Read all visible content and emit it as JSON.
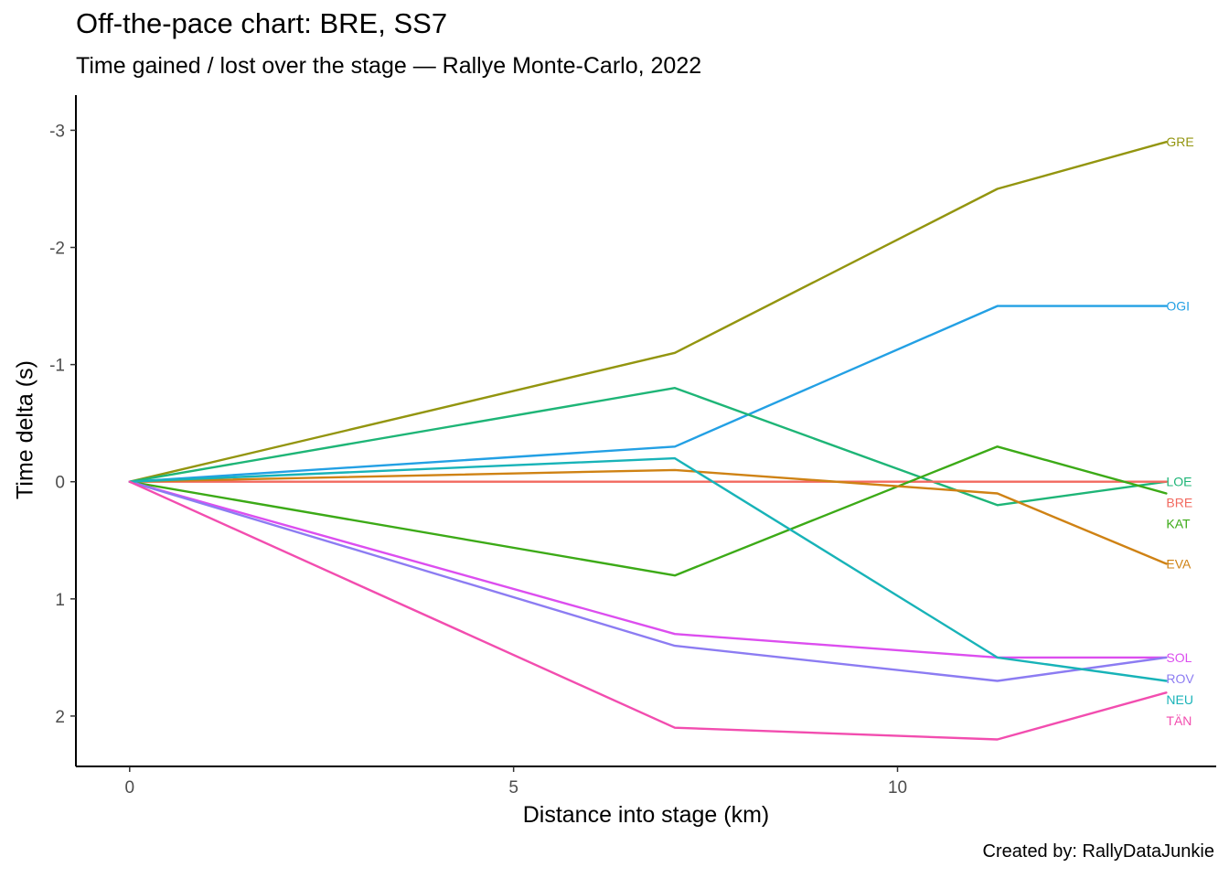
{
  "chart_data": {
    "type": "line",
    "title": "Off-the-pace chart: BRE, SS7",
    "subtitle": "Time gained / lost over the stage — Rallye Monte-Carlo, 2022",
    "xlabel": "Distance into stage (km)",
    "ylabel": "Time delta (s)",
    "caption": "Created by: RallyDataJunkie",
    "xlim": [
      -0.7,
      14.15
    ],
    "ylim": [
      -3.3,
      2.43
    ],
    "y_reversed": true,
    "x_ticks": [
      0,
      5,
      10
    ],
    "y_ticks": [
      -3,
      -2,
      -1,
      0,
      1,
      2
    ],
    "grid": false,
    "legend": "none (series labelled at line ends)",
    "x": [
      0,
      7.1,
      11.3,
      13.5
    ],
    "series": [
      {
        "name": "GRE",
        "color": "#93950F",
        "values": [
          0,
          -1.1,
          -2.5,
          -2.9
        ]
      },
      {
        "name": "OGI",
        "color": "#23A0E4",
        "values": [
          0,
          -0.3,
          -1.5,
          -1.5
        ]
      },
      {
        "name": "LOE",
        "color": "#1EB577",
        "values": [
          0,
          -0.8,
          0.2,
          0
        ]
      },
      {
        "name": "BRE",
        "color": "#F2695F",
        "values": [
          0,
          0,
          0,
          0
        ]
      },
      {
        "name": "KAT",
        "color": "#3CAA17",
        "values": [
          0,
          0.8,
          -0.3,
          0.1
        ]
      },
      {
        "name": "EVA",
        "color": "#CF8214",
        "values": [
          0,
          -0.1,
          0.1,
          0.7
        ]
      },
      {
        "name": "SOL",
        "color": "#DC4EEF",
        "values": [
          0,
          1.3,
          1.5,
          1.5
        ]
      },
      {
        "name": "ROV",
        "color": "#8C7CF2",
        "values": [
          0,
          1.4,
          1.7,
          1.5
        ]
      },
      {
        "name": "NEU",
        "color": "#18B3B8",
        "values": [
          0,
          -0.2,
          1.5,
          1.7
        ]
      },
      {
        "name": "TÄN",
        "color": "#F24DAF",
        "values": [
          0,
          2.1,
          2.2,
          1.8
        ]
      }
    ]
  }
}
